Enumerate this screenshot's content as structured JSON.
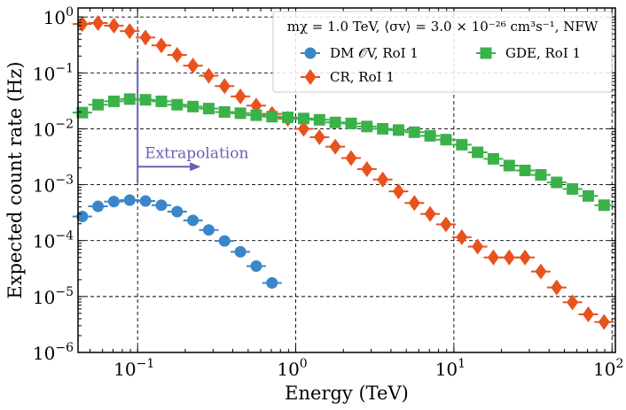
{
  "chart_data": {
    "type": "scatter",
    "xscale": "log",
    "yscale": "log",
    "xlim": [
      0.042,
      105
    ],
    "ylim": [
      1e-06,
      1.45
    ],
    "xlabel": "Energy (TeV)",
    "ylabel": "Expected count rate (Hz)",
    "grid": true,
    "x_ticks": [
      {
        "value": 0.1,
        "base": "10",
        "exp": "−1"
      },
      {
        "value": 1,
        "base": "10",
        "exp": "0"
      },
      {
        "value": 10,
        "base": "10",
        "exp": "1"
      },
      {
        "value": 100,
        "base": "10",
        "exp": "2"
      }
    ],
    "y_ticks": [
      {
        "value": 1e-06,
        "base": "10",
        "exp": "−6"
      },
      {
        "value": 1e-05,
        "base": "10",
        "exp": "−5"
      },
      {
        "value": 0.0001,
        "base": "10",
        "exp": "−4"
      },
      {
        "value": 0.001,
        "base": "10",
        "exp": "−3"
      },
      {
        "value": 0.01,
        "base": "10",
        "exp": "−2"
      },
      {
        "value": 0.1,
        "base": "10",
        "exp": "−1"
      },
      {
        "value": 1,
        "base": "10",
        "exp": "0"
      }
    ],
    "legend": {
      "title": "mχ = 1.0 TeV, ⟨σv⟩ = 3.0 × 10⁻²⁶ cm³s⁻¹, NFW",
      "placement": "top-right"
    },
    "series": [
      {
        "name": "DM 𝒪V, RoI 1",
        "marker": "circle",
        "color": "#3a86c8",
        "x": [
          0.0447,
          0.0562,
          0.0708,
          0.0891,
          0.1122,
          0.1413,
          0.1778,
          0.2239,
          0.2818,
          0.3548,
          0.4467,
          0.5623,
          0.7079
        ],
        "y": [
          0.00027,
          0.00041,
          0.0005,
          0.00053,
          0.00051,
          0.00043,
          0.00033,
          0.00023,
          0.000155,
          9.85e-05,
          6.3e-05,
          3.5e-05,
          1.75e-05
        ]
      },
      {
        "name": "CR, RoI 1",
        "marker": "diamond",
        "color": "#e8521c",
        "x": [
          0.0447,
          0.0562,
          0.0708,
          0.0891,
          0.1122,
          0.1413,
          0.1778,
          0.2239,
          0.2818,
          0.3548,
          0.4467,
          0.5623,
          0.7079,
          0.8913,
          1.122,
          1.413,
          1.778,
          2.239,
          2.818,
          3.548,
          4.467,
          5.623,
          7.079,
          8.913,
          11.22,
          14.13,
          17.78,
          22.39,
          28.18,
          35.48,
          44.67,
          56.23,
          70.79,
          89.13
        ],
        "y": [
          0.75,
          0.78,
          0.7,
          0.56,
          0.43,
          0.31,
          0.21,
          0.135,
          0.089,
          0.058,
          0.038,
          0.026,
          0.0185,
          0.0151,
          0.01,
          0.0071,
          0.0048,
          0.003,
          0.0019,
          0.00124,
          0.00076,
          0.00047,
          0.0003,
          0.000195,
          0.000115,
          7.8e-05,
          5e-05,
          5e-05,
          5e-05,
          2.8e-05,
          1.45e-05,
          7.9e-06,
          4.8e-06,
          3.5e-06
        ]
      },
      {
        "name": "GDE, RoI 1",
        "marker": "square",
        "color": "#3bb14a",
        "x": [
          0.0447,
          0.0562,
          0.0708,
          0.0891,
          0.1122,
          0.1413,
          0.1778,
          0.2239,
          0.2818,
          0.3548,
          0.4467,
          0.5623,
          0.7079,
          0.8913,
          1.122,
          1.413,
          1.778,
          2.239,
          2.818,
          3.548,
          4.467,
          5.623,
          7.079,
          8.913,
          11.22,
          14.13,
          17.78,
          22.39,
          28.18,
          35.48,
          44.67,
          56.23,
          70.79,
          89.13
        ],
        "y": [
          0.0195,
          0.027,
          0.031,
          0.034,
          0.033,
          0.031,
          0.027,
          0.025,
          0.023,
          0.02,
          0.019,
          0.0175,
          0.0165,
          0.016,
          0.0153,
          0.0145,
          0.013,
          0.0125,
          0.011,
          0.01,
          0.0095,
          0.0087,
          0.0075,
          0.0064,
          0.0052,
          0.0038,
          0.0029,
          0.0022,
          0.0018,
          0.0015,
          0.0011,
          0.00084,
          0.00063,
          0.00043
        ]
      }
    ],
    "annotations": [
      {
        "text": "Extrapolation",
        "x": 0.1,
        "y": 0.0021,
        "color": "#6a5fb3",
        "arrow": "right"
      }
    ]
  }
}
